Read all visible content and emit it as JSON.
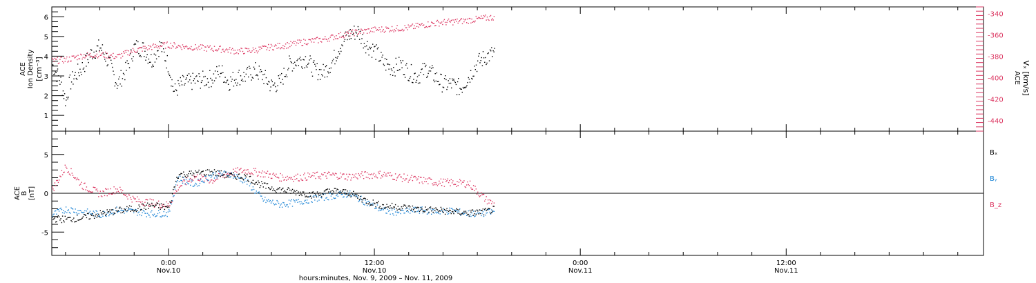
{
  "colors": {
    "density": "#000000",
    "vx": "#dc3560",
    "bx": "#000000",
    "by": "#1f86d6",
    "bz": "#dc3560"
  },
  "x_axis": {
    "title": "hours:minutes, Nov.  9, 2009 – Nov. 11, 2009",
    "ticks": [
      {
        "time": "0:00",
        "date": "Nov.10",
        "hour": 0
      },
      {
        "time": "12:00",
        "date": "Nov.10",
        "hour": 12
      },
      {
        "time": "0:00",
        "date": "Nov.11",
        "hour": 24
      },
      {
        "time": "12:00",
        "date": "Nov.11",
        "hour": 36
      }
    ],
    "range_hours": [
      -6.8,
      47.5
    ]
  },
  "chart_data": [
    {
      "type": "scatter",
      "panel": "top",
      "ylabel_left": [
        "ACE",
        "Ion Density",
        "[cm⁻³]"
      ],
      "ylabel_right": [
        "ACE",
        "Vₓ [km/s]"
      ],
      "left_axis": {
        "ylim": [
          0.2,
          6.5
        ],
        "ticks": [
          "1",
          "2",
          "3",
          "4",
          "5",
          "6"
        ]
      },
      "right_axis": {
        "ylim": [
          -450,
          -334
        ],
        "ticks": [
          "-340",
          "-360",
          "-380",
          "-400",
          "-420",
          "-440"
        ]
      },
      "series": [
        {
          "key": "density",
          "axis": "left",
          "x_hours": [
            -6.8,
            -6.3,
            -6.0,
            -5.8,
            -5.5,
            -5.0,
            -4.5,
            -4.0,
            -3.5,
            -3.0,
            -2.5,
            -2.0,
            -1.5,
            -1.0,
            -0.5,
            0.0,
            0.3,
            0.7,
            1.2,
            1.8,
            2.5,
            3.0,
            3.5,
            4.0,
            4.5,
            5.0,
            5.5,
            6.0,
            6.5,
            7.0,
            7.5,
            8.0,
            8.5,
            9.0,
            9.5,
            10.0,
            10.5,
            11.0,
            11.5,
            12.0,
            12.5,
            13.0,
            13.5,
            14.0,
            14.5,
            15.0,
            15.5,
            16.0,
            16.5,
            17.0,
            17.5,
            18.0,
            18.5,
            19.0
          ],
          "y": [
            3.6,
            2.7,
            1.7,
            2.6,
            3.0,
            3.5,
            4.2,
            4.5,
            3.7,
            2.6,
            3.3,
            4.5,
            4.4,
            3.8,
            4.6,
            3.5,
            2.2,
            2.6,
            2.7,
            2.8,
            2.9,
            3.3,
            2.7,
            3.0,
            3.0,
            3.3,
            3.0,
            2.5,
            2.7,
            3.6,
            3.8,
            3.9,
            3.3,
            3.2,
            3.7,
            4.6,
            5.1,
            5.3,
            4.6,
            4.3,
            3.7,
            3.4,
            3.6,
            3.2,
            3.0,
            3.4,
            3.0,
            2.6,
            2.6,
            2.4,
            3.0,
            3.7,
            4.0,
            4.2
          ]
        },
        {
          "key": "vx",
          "axis": "right",
          "x_hours": [
            -6.8,
            -6.0,
            -5.0,
            -4.0,
            -3.0,
            -2.0,
            -1.0,
            0.0,
            1.0,
            2.0,
            3.0,
            4.0,
            5.0,
            6.0,
            7.0,
            8.0,
            9.0,
            10.0,
            11.0,
            12.0,
            13.0,
            14.0,
            15.0,
            16.0,
            17.0,
            18.0,
            19.0
          ],
          "y": [
            -384,
            -383,
            -379,
            -378,
            -380,
            -374,
            -371,
            -369,
            -371,
            -372,
            -373,
            -375,
            -374,
            -371,
            -369,
            -366,
            -364,
            -360,
            -357,
            -355,
            -354,
            -353,
            -350,
            -348,
            -347,
            -345,
            -343
          ]
        }
      ]
    },
    {
      "type": "scatter",
      "panel": "bottom",
      "ylabel_left": [
        "ACE",
        "B",
        "[nT]"
      ],
      "left_axis": {
        "ylim": [
          -8,
          8
        ],
        "ticks": [
          "5",
          "0",
          "-5"
        ]
      },
      "zero_line": true,
      "series": [
        {
          "key": "bx",
          "name": "Bₓ",
          "x_hours": [
            -6.8,
            -6.0,
            -5.0,
            -4.0,
            -3.0,
            -2.0,
            -1.0,
            0.0,
            0.5,
            1.5,
            2.5,
            3.5,
            4.5,
            5.5,
            6.5,
            7.5,
            8.5,
            9.5,
            10.5,
            11.5,
            12.5,
            13.5,
            14.5,
            15.5,
            16.5,
            17.5,
            18.5,
            19.0
          ],
          "y": [
            -3.2,
            -3.3,
            -3.1,
            -2.6,
            -2.2,
            -1.9,
            -1.5,
            -1.8,
            2.4,
            2.6,
            2.8,
            2.3,
            2.2,
            1.0,
            0.5,
            0.2,
            -0.2,
            0.4,
            0.1,
            -0.9,
            -1.6,
            -1.7,
            -2.0,
            -2.1,
            -2.3,
            -2.5,
            -2.3,
            -2.0
          ]
        },
        {
          "key": "by",
          "name": "Bᵧ",
          "x_hours": [
            -6.8,
            -6.0,
            -5.0,
            -4.0,
            -3.0,
            -2.0,
            -1.0,
            0.0,
            0.5,
            1.5,
            2.5,
            3.5,
            4.5,
            5.5,
            6.5,
            7.5,
            8.5,
            9.5,
            10.5,
            11.5,
            12.5,
            13.5,
            14.5,
            15.5,
            16.5,
            17.5,
            18.5,
            19.0
          ],
          "y": [
            -2.7,
            -2.0,
            -2.3,
            -2.7,
            -2.1,
            -2.3,
            -2.6,
            -2.5,
            2.0,
            1.2,
            2.4,
            2.6,
            1.6,
            -0.8,
            -1.4,
            -1.1,
            -0.6,
            -0.3,
            0.0,
            -1.1,
            -2.2,
            -2.4,
            -2.1,
            -2.3,
            -2.2,
            -2.6,
            -2.5,
            -2.3
          ]
        },
        {
          "key": "bz",
          "name": "B_z",
          "x_hours": [
            -6.8,
            -6.0,
            -5.0,
            -4.0,
            -3.0,
            -2.0,
            -1.0,
            0.0,
            0.5,
            1.5,
            2.5,
            3.5,
            4.5,
            5.5,
            6.5,
            7.5,
            8.5,
            9.5,
            10.5,
            11.5,
            12.5,
            13.5,
            14.5,
            15.5,
            16.5,
            17.5,
            18.5,
            19.0
          ],
          "y": [
            0.5,
            3.5,
            1.0,
            0.0,
            0.6,
            -0.8,
            -1.2,
            -1.5,
            0.8,
            2.2,
            1.7,
            2.7,
            3.0,
            2.6,
            2.1,
            2.1,
            2.3,
            2.4,
            2.2,
            2.4,
            2.5,
            2.1,
            1.8,
            1.5,
            1.4,
            1.3,
            -0.8,
            -1.4
          ]
        }
      ]
    }
  ]
}
